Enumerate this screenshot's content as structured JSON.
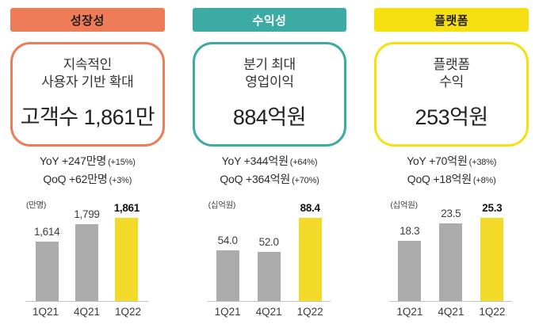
{
  "slide": {
    "background": "#ffffff",
    "gray_bar_color": "#ababab",
    "columns": [
      {
        "header": "성장성",
        "accent": "#EE7C59",
        "header_text_color": "#221E1C",
        "lines": [
          "지속적인",
          "사용자 기반 확대"
        ],
        "value": "고객수 1,861만",
        "stats": [
          {
            "text": "YoY +247만명",
            "pct": "(+15%)"
          },
          {
            "text": "QoQ +62만명",
            "pct": "(+3%)"
          }
        ]
      },
      {
        "header": "수익성",
        "accent": "#3BABA3",
        "header_text_color": "#FFFFFF",
        "lines": [
          "분기 최대",
          "영업이익"
        ],
        "value": "884억원",
        "stats": [
          {
            "text": "YoY +344억원",
            "pct": "(+64%)"
          },
          {
            "text": "QoQ +364억원",
            "pct": "(+70%)"
          }
        ]
      },
      {
        "header": "플랫폼",
        "accent": "#F7E012",
        "header_text_color": "#221E1C",
        "lines": [
          "플랫폼",
          "수익"
        ],
        "value": "253억원",
        "stats": [
          {
            "text": "YoY +70억원",
            "pct": "(+38%)"
          },
          {
            "text": "QoQ +18억원",
            "pct": "(+8%)"
          }
        ]
      }
    ]
  },
  "chart_data": [
    {
      "type": "bar",
      "unit": "(만명)",
      "categories": [
        "1Q21",
        "4Q21",
        "1Q22"
      ],
      "values": [
        1614,
        1799,
        1861
      ],
      "labels": [
        "1,614",
        "1,799",
        "1,861"
      ],
      "highlight_index": 2,
      "bar_color": "#ABABAB",
      "highlight_color": "#F4DA28",
      "ylim": [
        1000,
        1861
      ],
      "grid": false,
      "legend": false
    },
    {
      "type": "bar",
      "unit": "(십억원)",
      "categories": [
        "1Q21",
        "4Q21",
        "1Q22"
      ],
      "values": [
        54.0,
        52.0,
        88.4
      ],
      "labels": [
        "54.0",
        "52.0",
        "88.4"
      ],
      "highlight_index": 2,
      "bar_color": "#ABABAB",
      "highlight_color": "#F4DA28",
      "ylim": [
        0,
        88.4
      ],
      "grid": false,
      "legend": false
    },
    {
      "type": "bar",
      "unit": "(십억원)",
      "categories": [
        "1Q21",
        "4Q21",
        "1Q22"
      ],
      "values": [
        18.3,
        23.5,
        25.3
      ],
      "labels": [
        "18.3",
        "23.5",
        "25.3"
      ],
      "highlight_index": 2,
      "bar_color": "#ABABAB",
      "highlight_color": "#F4DA28",
      "ylim": [
        0,
        25.3
      ],
      "grid": false,
      "legend": false
    }
  ]
}
